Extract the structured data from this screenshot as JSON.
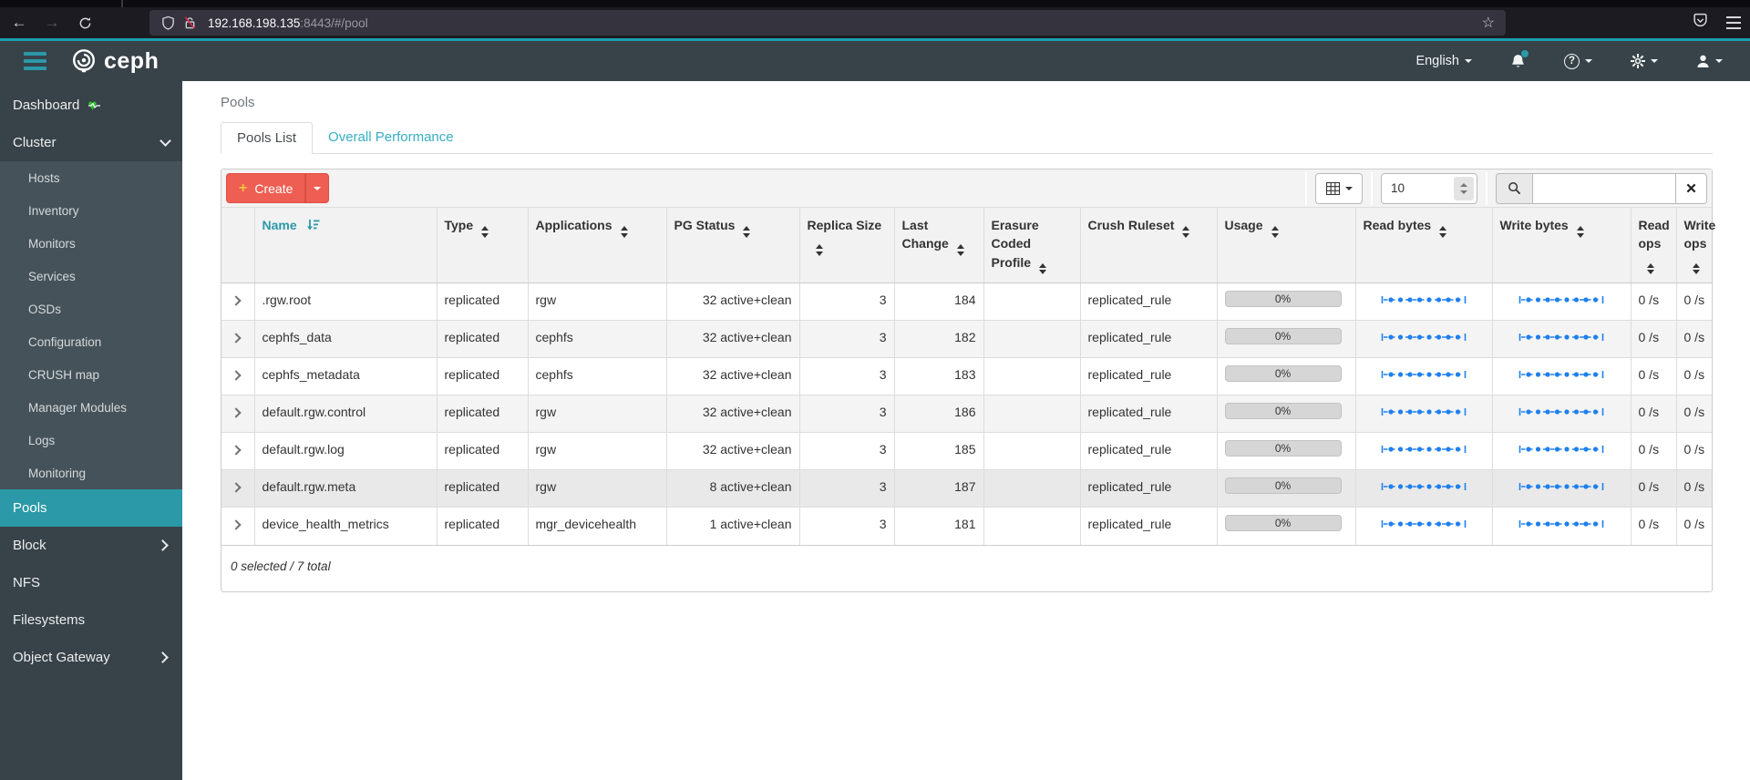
{
  "browser": {
    "url_host": "192.168.198.135",
    "url_path": ":8443/#/pool",
    "icons": [
      "back-arrow",
      "forward-arrow",
      "reload",
      "shield",
      "insecure-lock",
      "bookmark-star",
      "pocket-shield",
      "menu-hamburger"
    ]
  },
  "navbar": {
    "brand": "ceph",
    "language": "English",
    "icons": [
      "ceph-logo",
      "sidebar-toggle",
      "notifications-bell",
      "help",
      "settings-gear",
      "user"
    ]
  },
  "sidebar": {
    "items": [
      {
        "label": "Dashboard",
        "level": 0,
        "icon": "heartbeat"
      },
      {
        "label": "Cluster",
        "level": 0,
        "chevron": "down"
      },
      {
        "label": "Hosts",
        "level": 1
      },
      {
        "label": "Inventory",
        "level": 1
      },
      {
        "label": "Monitors",
        "level": 1
      },
      {
        "label": "Services",
        "level": 1
      },
      {
        "label": "OSDs",
        "level": 1
      },
      {
        "label": "Configuration",
        "level": 1
      },
      {
        "label": "CRUSH map",
        "level": 1
      },
      {
        "label": "Manager Modules",
        "level": 1
      },
      {
        "label": "Logs",
        "level": 1
      },
      {
        "label": "Monitoring",
        "level": 1
      },
      {
        "label": "Pools",
        "level": 0,
        "active": true
      },
      {
        "label": "Block",
        "level": 0,
        "chevron": "right"
      },
      {
        "label": "NFS",
        "level": 0
      },
      {
        "label": "Filesystems",
        "level": 0
      },
      {
        "label": "Object Gateway",
        "level": 0,
        "chevron": "right"
      }
    ]
  },
  "page": {
    "breadcrumb": "Pools",
    "tabs": [
      "Pools List",
      "Overall Performance"
    ]
  },
  "toolbar": {
    "create_label": "Create",
    "page_size": "10",
    "search_placeholder": ""
  },
  "table": {
    "columns": [
      {
        "label": "",
        "key": "expand",
        "sort": "none"
      },
      {
        "label": "Name",
        "key": "name",
        "sort": "asc"
      },
      {
        "label": "Type",
        "key": "type",
        "sort": "both"
      },
      {
        "label": "Applications",
        "key": "applications",
        "sort": "both"
      },
      {
        "label": "PG Status",
        "key": "pg_status",
        "sort": "both"
      },
      {
        "label": "Replica Size",
        "key": "replica_size",
        "sort": "both"
      },
      {
        "label": "Last Change",
        "key": "last_change",
        "sort": "both"
      },
      {
        "label": "Erasure Coded Profile",
        "key": "erasure_coded_profile",
        "sort": "both"
      },
      {
        "label": "Crush Ruleset",
        "key": "crush_ruleset",
        "sort": "both"
      },
      {
        "label": "Usage",
        "key": "usage",
        "sort": "both"
      },
      {
        "label": "Read bytes",
        "key": "read_bytes",
        "sort": "both"
      },
      {
        "label": "Write bytes",
        "key": "write_bytes",
        "sort": "both"
      },
      {
        "label": "Read ops",
        "key": "read_ops",
        "sort": "both"
      },
      {
        "label": "Write ops",
        "key": "write_ops",
        "sort": "both"
      }
    ],
    "rows": [
      {
        "name": ".rgw.root",
        "type": "replicated",
        "applications": "rgw",
        "pg_status": "32 active+clean",
        "replica_size": "3",
        "last_change": "184",
        "erasure_coded_profile": "",
        "crush_ruleset": "replicated_rule",
        "usage": "0%",
        "read_ops": "0 /s",
        "write_ops": "0 /s"
      },
      {
        "name": "cephfs_data",
        "type": "replicated",
        "applications": "cephfs",
        "pg_status": "32 active+clean",
        "replica_size": "3",
        "last_change": "182",
        "erasure_coded_profile": "",
        "crush_ruleset": "replicated_rule",
        "usage": "0%",
        "read_ops": "0 /s",
        "write_ops": "0 /s"
      },
      {
        "name": "cephfs_metadata",
        "type": "replicated",
        "applications": "cephfs",
        "pg_status": "32 active+clean",
        "replica_size": "3",
        "last_change": "183",
        "erasure_coded_profile": "",
        "crush_ruleset": "replicated_rule",
        "usage": "0%",
        "read_ops": "0 /s",
        "write_ops": "0 /s"
      },
      {
        "name": "default.rgw.control",
        "type": "replicated",
        "applications": "rgw",
        "pg_status": "32 active+clean",
        "replica_size": "3",
        "last_change": "186",
        "erasure_coded_profile": "",
        "crush_ruleset": "replicated_rule",
        "usage": "0%",
        "read_ops": "0 /s",
        "write_ops": "0 /s"
      },
      {
        "name": "default.rgw.log",
        "type": "replicated",
        "applications": "rgw",
        "pg_status": "32 active+clean",
        "replica_size": "3",
        "last_change": "185",
        "erasure_coded_profile": "",
        "crush_ruleset": "replicated_rule",
        "usage": "0%",
        "read_ops": "0 /s",
        "write_ops": "0 /s"
      },
      {
        "name": "default.rgw.meta",
        "type": "replicated",
        "applications": "rgw",
        "pg_status": "8 active+clean",
        "replica_size": "3",
        "last_change": "187",
        "erasure_coded_profile": "",
        "crush_ruleset": "replicated_rule",
        "usage": "0%",
        "read_ops": "0 /s",
        "write_ops": "0 /s"
      },
      {
        "name": "device_health_metrics",
        "type": "replicated",
        "applications": "mgr_devicehealth",
        "pg_status": "1 active+clean",
        "replica_size": "3",
        "last_change": "181",
        "erasure_coded_profile": "",
        "crush_ruleset": "replicated_rule",
        "usage": "0%",
        "read_ops": "0 /s",
        "write_ops": "0 /s"
      }
    ],
    "footer": "0 selected / 7 total"
  },
  "colors": {
    "accent_teal": "#2b99a8",
    "tab_link_teal": "#38aec5",
    "status_green": "#2bcb2b",
    "create_red": "#ee5e52",
    "create_plus_gold": "#efc341",
    "sparkline_blue": "#1f80ed",
    "navbar_dark": "#374249",
    "browser_dark": "#1c1b22"
  }
}
